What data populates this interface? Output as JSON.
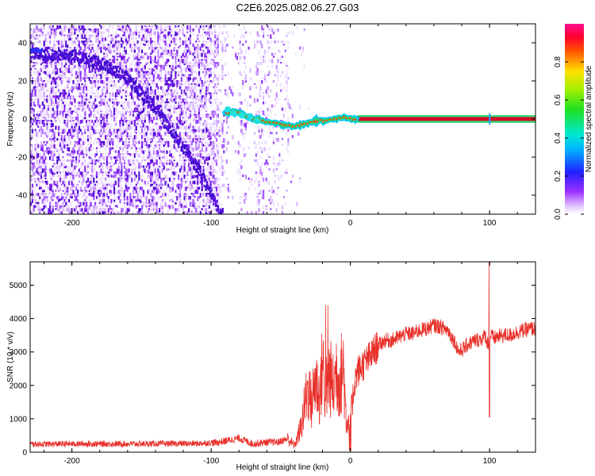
{
  "title": "C2E6.2025.082.06.27.G03",
  "colors": {
    "snr_line": "#e8302a",
    "ridge_core": "#d80a2a",
    "ridge_edge": "#2bd66a",
    "speckle": "#7a1cf0",
    "axis": "#000000"
  },
  "chart_data": [
    {
      "type": "heatmap",
      "description": "spectrogram of frequency versus straight-line height",
      "xlabel": "Height of straight line (km)",
      "ylabel": "Frequency (Hz)",
      "xlim": [
        -230,
        133
      ],
      "ylim": [
        -50,
        50
      ],
      "xticks": [
        -200,
        -100,
        0,
        100
      ],
      "yticks": [
        -40,
        -20,
        0,
        20,
        40
      ],
      "xtick_labels": [
        "-200",
        "-100",
        "0",
        "100"
      ],
      "ytick_labels": [
        "-40",
        "-20",
        "0",
        "20",
        "40"
      ],
      "colorbar": {
        "label": "Normalized spectral amplitude",
        "range": [
          0,
          1
        ],
        "ticks": [
          0.0,
          0.2,
          0.4,
          0.6,
          0.8
        ],
        "tick_labels": [
          "0.0",
          "0.2",
          "0.4",
          "0.6",
          "0.8"
        ],
        "colormap": "rainbow (white-violet-blue-cyan-green-yellow-red-magenta)"
      },
      "ridge": {
        "x": [
          -90,
          -85,
          -80,
          -75,
          -70,
          -65,
          -60,
          -55,
          -50,
          -45,
          -40,
          -35,
          -30,
          -25,
          -20,
          -15,
          -10,
          -5,
          0,
          5,
          130
        ],
        "y": [
          3,
          4,
          3,
          2,
          0,
          0,
          -2,
          -2,
          -3,
          -3,
          -4,
          -3,
          -2,
          -1,
          -1,
          0,
          0,
          1,
          0,
          0,
          0
        ]
      },
      "secondary_trace": {
        "x": [
          -230,
          -200,
          -180,
          -160,
          -140,
          -125,
          -110,
          -100,
          -92
        ],
        "y": [
          35,
          34,
          30,
          22,
          6,
          -10,
          -25,
          -40,
          -50
        ]
      },
      "speckle_extent_x": [
        -230,
        -40
      ],
      "grid": false
    },
    {
      "type": "line",
      "xlabel": "Height of straight line (km)",
      "ylabel": "SNR (10 * v/v)",
      "xlim": [
        -230,
        133
      ],
      "ylim": [
        0,
        5700
      ],
      "xticks": [
        -200,
        -100,
        0,
        100
      ],
      "yticks": [
        0,
        1000,
        2000,
        3000,
        4000,
        5000
      ],
      "xtick_labels": [
        "-200",
        "-100",
        "0",
        "100"
      ],
      "ytick_labels": [
        "0",
        "1000",
        "2000",
        "3000",
        "4000",
        "5000"
      ],
      "series": [
        {
          "x": [
            -230,
            -200,
            -150,
            -110,
            -95,
            -80,
            -70,
            -60,
            -52,
            -45,
            -40,
            -35,
            -32,
            -30,
            -28,
            -25,
            -22,
            -20,
            -18,
            -15,
            -12,
            -10,
            -8,
            -5,
            -3,
            0,
            3,
            5,
            10,
            15,
            20,
            25,
            30,
            35,
            40,
            45,
            50,
            55,
            60,
            65,
            70,
            75,
            78,
            80,
            85,
            90,
            95,
            97,
            99,
            100,
            101,
            103,
            105,
            110,
            115,
            120,
            125,
            130,
            133
          ],
          "y": [
            240,
            250,
            250,
            260,
            290,
            420,
            250,
            300,
            300,
            400,
            200,
            800,
            1600,
            1900,
            1400,
            2200,
            1600,
            2700,
            1800,
            2300,
            1900,
            2500,
            2100,
            2600,
            1000,
            900,
            2100,
            2400,
            2650,
            2900,
            3200,
            3350,
            3350,
            3450,
            3550,
            3550,
            3650,
            3700,
            3800,
            3750,
            3650,
            3300,
            3000,
            3050,
            3250,
            3350,
            3400,
            3500,
            3200,
            3400,
            3500,
            3400,
            3450,
            3500,
            3500,
            3600,
            3650,
            3700,
            3700
          ]
        }
      ],
      "annotations": [
        {
          "x": -17,
          "y": 4400,
          "text": ""
        },
        {
          "x": 100,
          "y": 5700,
          "text": ""
        },
        {
          "x": 100,
          "y": 1050,
          "text": ""
        }
      ],
      "grid": false
    }
  ]
}
